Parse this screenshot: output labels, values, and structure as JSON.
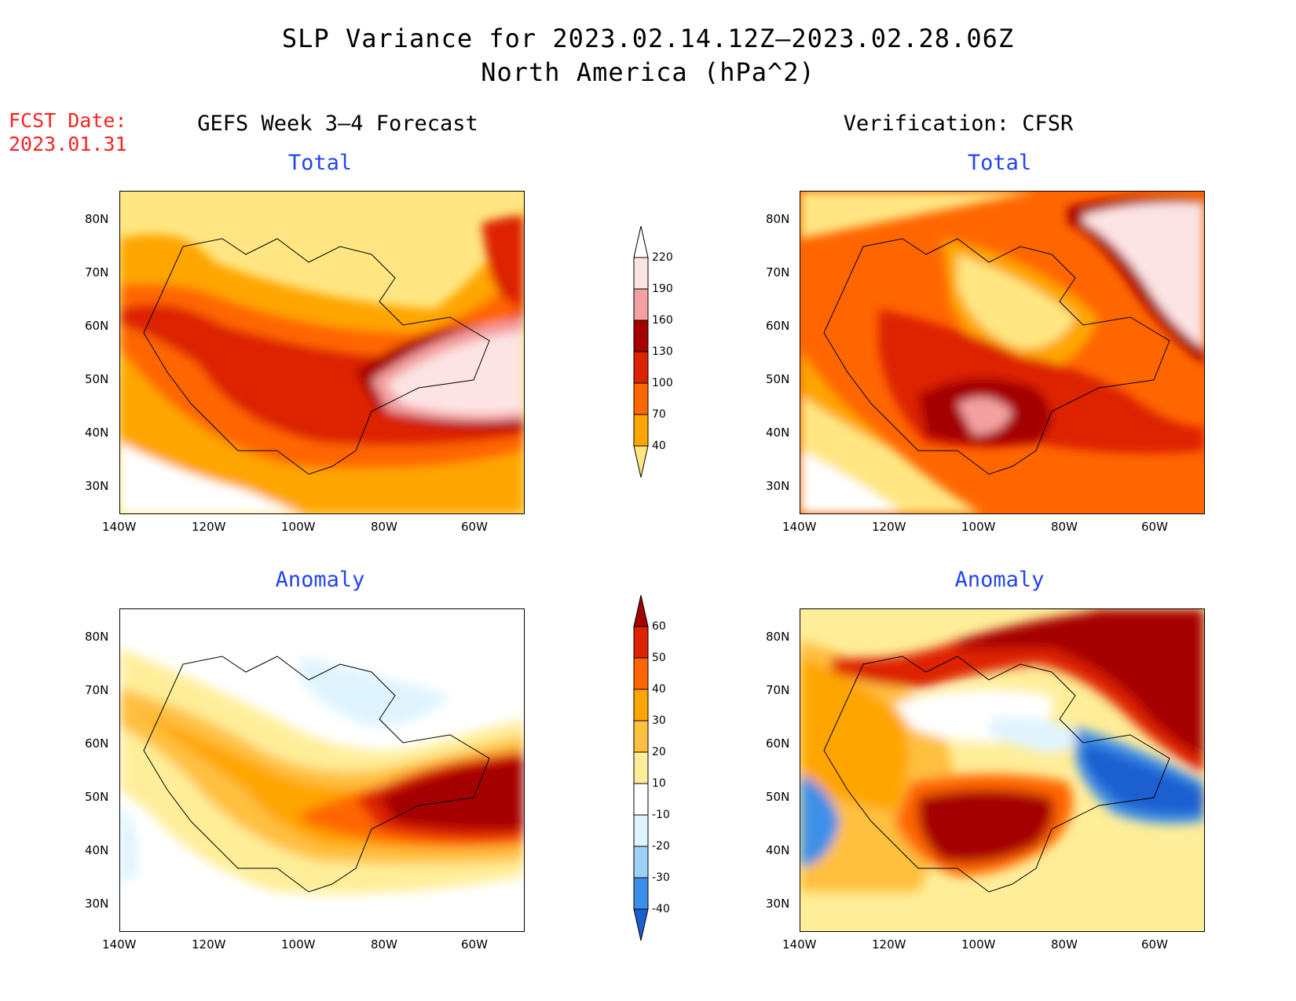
{
  "header": {
    "title_line1": "SLP Variance for 2023.02.14.12Z–2023.02.28.06Z",
    "title_line2": "North America (hPa^2)"
  },
  "fcst_date": {
    "label": "FCST Date:",
    "value": "2023.01.31"
  },
  "columns": {
    "left": "GEFS Week 3–4 Forecast",
    "right": "Verification: CFSR"
  },
  "panels": {
    "top_left_title": "Total",
    "top_right_title": "Total",
    "bottom_left_title": "Anomaly",
    "bottom_right_title": "Anomaly"
  },
  "axes": {
    "lat_labels": [
      "80N",
      "70N",
      "60N",
      "50N",
      "40N",
      "30N"
    ],
    "lon_labels": [
      "140W",
      "120W",
      "100W",
      "80W",
      "60W"
    ],
    "lat_range": [
      25,
      85
    ],
    "lon_range": [
      -140,
      -50
    ]
  },
  "colorbars": {
    "total": {
      "labels": [
        "220",
        "190",
        "160",
        "130",
        "100",
        "70",
        "40"
      ],
      "colors": [
        "#fde4e4",
        "#f4a0a0",
        "#a50000",
        "#dd2200",
        "#ff6600",
        "#ffa500",
        "#ffe682"
      ]
    },
    "anomaly": {
      "labels": [
        "60",
        "50",
        "40",
        "30",
        "20",
        "10",
        "-10",
        "-20",
        "-30",
        "-40"
      ],
      "colors": [
        "#a50000",
        "#dd2200",
        "#ff6600",
        "#ffa500",
        "#ffc040",
        "#ffee99",
        "#ffffff",
        "#dff4ff",
        "#9fd0f5",
        "#3c8fe8",
        "#1a5fd0"
      ]
    }
  },
  "colors": {
    "title_blue": "#2244ee",
    "fcst_red": "#ff2020"
  }
}
